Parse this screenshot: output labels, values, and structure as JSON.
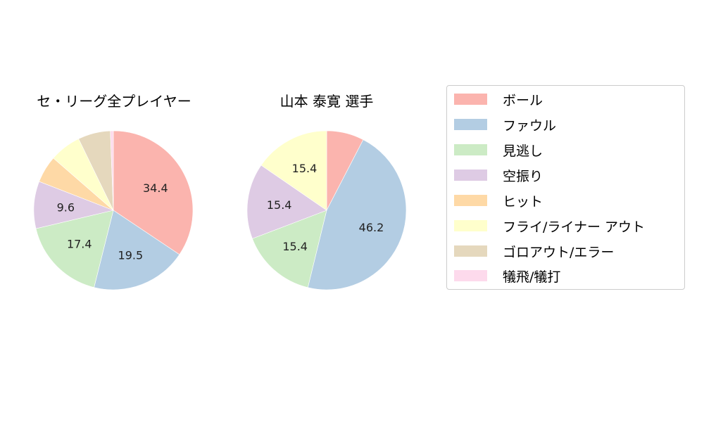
{
  "legend": {
    "items": [
      {
        "label": "ボール",
        "color": "#fbb4ae"
      },
      {
        "label": "ファウル",
        "color": "#b3cde3"
      },
      {
        "label": "見逃し",
        "color": "#ccebc5"
      },
      {
        "label": "空振り",
        "color": "#decbe4"
      },
      {
        "label": "ヒット",
        "color": "#fed9a6"
      },
      {
        "label": "フライ/ライナー アウト",
        "color": "#ffffcc"
      },
      {
        "label": "ゴロアウト/エラー",
        "color": "#e5d8bd"
      },
      {
        "label": "犠飛/犠打",
        "color": "#fddaec"
      }
    ]
  },
  "charts": [
    {
      "title": "セ・リーグ全プレイヤー"
    },
    {
      "title": "山本 泰寛  選手"
    }
  ],
  "chart_data": [
    {
      "type": "pie",
      "title": "セ・リーグ全プレイヤー",
      "categories": [
        "ボール",
        "ファウル",
        "見逃し",
        "空振り",
        "ヒット",
        "フライ/ライナー アウト",
        "ゴロアウト/エラー",
        "犠飛/犠打"
      ],
      "values": [
        34.4,
        19.5,
        17.4,
        9.6,
        5.5,
        6.4,
        6.6,
        0.6
      ],
      "labels_shown": [
        "34.4",
        "19.5",
        "17.4",
        "9.6",
        "",
        "",
        "",
        ""
      ],
      "colors": [
        "#fbb4ae",
        "#b3cde3",
        "#ccebc5",
        "#decbe4",
        "#fed9a6",
        "#ffffcc",
        "#e5d8bd",
        "#fddaec"
      ],
      "start_angle": 90,
      "direction": "clockwise"
    },
    {
      "type": "pie",
      "title": "山本 泰寛  選手",
      "categories": [
        "ボール",
        "ファウル",
        "見逃し",
        "空振り",
        "ヒット",
        "フライ/ライナー アウト",
        "ゴロアウト/エラー",
        "犠飛/犠打"
      ],
      "values": [
        7.6,
        46.2,
        15.4,
        15.4,
        0,
        15.4,
        0,
        0
      ],
      "labels_shown": [
        "",
        "46.2",
        "15.4",
        "15.4",
        "",
        "15.4",
        "",
        ""
      ],
      "colors": [
        "#fbb4ae",
        "#b3cde3",
        "#ccebc5",
        "#decbe4",
        "#fed9a6",
        "#ffffcc",
        "#e5d8bd",
        "#fddaec"
      ],
      "start_angle": 90,
      "direction": "clockwise"
    }
  ]
}
